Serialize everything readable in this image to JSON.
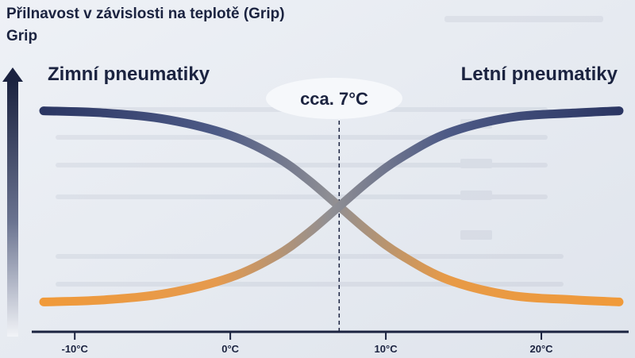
{
  "chart_data": {
    "type": "line",
    "title": "Přilnavost v závislosti na teplotě (Grip)",
    "ylabel": "Grip",
    "xlabel": "",
    "x_ticks": [
      -10,
      0,
      10,
      20
    ],
    "x_tick_labels": [
      "-10°C",
      "0°C",
      "10°C",
      "20°C"
    ],
    "xlim": [
      -12,
      25
    ],
    "ylim": [
      0,
      1
    ],
    "crossover_label": "cca. 7°C",
    "crossover_x": 7,
    "series": [
      {
        "name": "Zimní pneumatiky",
        "x": [
          -12,
          -8,
          -4,
          0,
          3,
          5,
          7,
          9,
          11,
          14,
          18,
          22,
          25
        ],
        "values": [
          0.93,
          0.92,
          0.89,
          0.82,
          0.72,
          0.62,
          0.5,
          0.38,
          0.28,
          0.17,
          0.1,
          0.08,
          0.07
        ]
      },
      {
        "name": "Letní pneumatiky",
        "x": [
          -12,
          -8,
          -4,
          0,
          3,
          5,
          7,
          9,
          11,
          14,
          18,
          22,
          25
        ],
        "values": [
          0.07,
          0.08,
          0.11,
          0.18,
          0.28,
          0.38,
          0.5,
          0.62,
          0.72,
          0.83,
          0.9,
          0.92,
          0.93
        ]
      }
    ],
    "colors": {
      "winter": "#2b3663",
      "summer": "#f09a3a",
      "axis": "#1b2340"
    },
    "grid": false
  }
}
